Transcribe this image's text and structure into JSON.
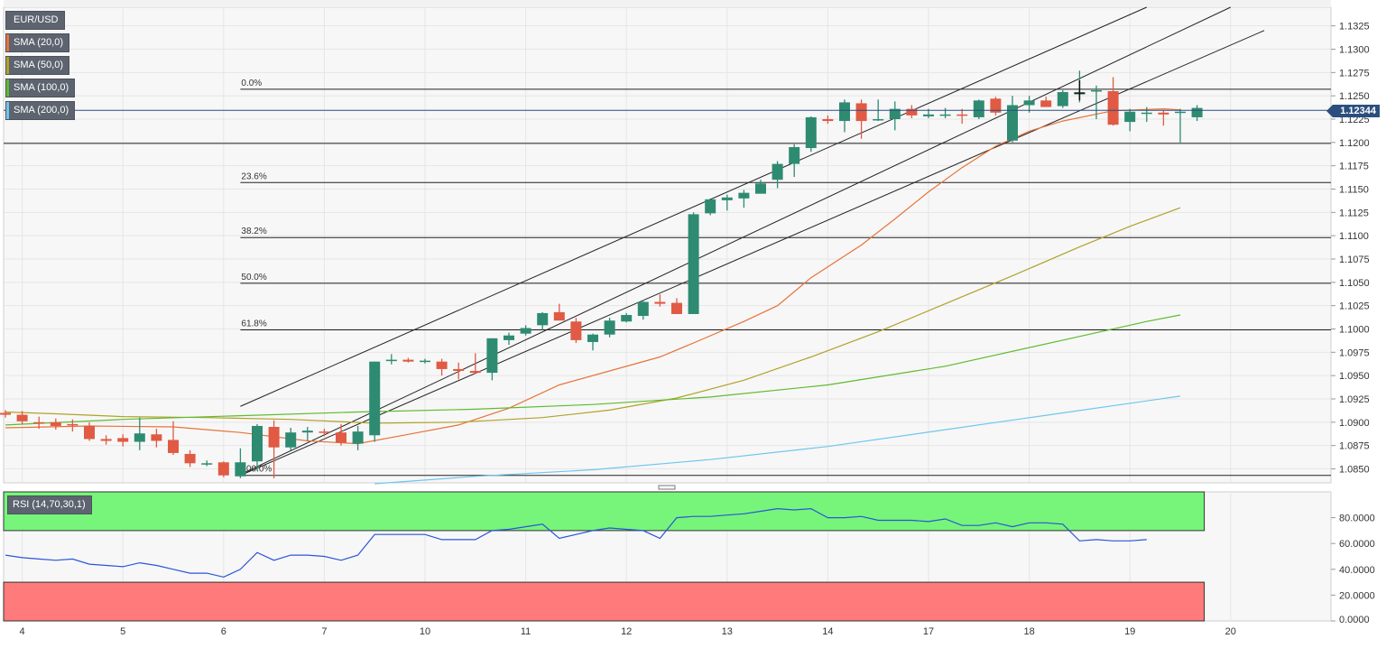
{
  "symbol": "EUR/USD",
  "indicators": [
    {
      "label": "SMA (20,0)",
      "color": "#e8733a"
    },
    {
      "label": "SMA (50,0)",
      "color": "#b0a228"
    },
    {
      "label": "SMA (100,0)",
      "color": "#5dbb2f"
    },
    {
      "label": "SMA (200,0)",
      "color": "#6fc6ef"
    }
  ],
  "last_price": "1.12344",
  "rsi_label": "RSI (14,70,30,1)",
  "colors": {
    "up": "#2e8b72",
    "down": "#e05a44",
    "grid": "#e6e6e6",
    "rsi_line": "#2a55d8",
    "overbought": "#76f57a",
    "oversold": "#ff7a7a"
  },
  "chart_data": {
    "type": "candlestick",
    "title": "EUR/USD",
    "timeframe_note": "",
    "ylim": [
      1.0835,
      1.1345
    ],
    "y_ticks": [
      "1.1325",
      "1.1300",
      "1.1275",
      "1.1250",
      "1.1225",
      "1.1200",
      "1.1175",
      "1.1150",
      "1.1125",
      "1.1100",
      "1.1075",
      "1.1050",
      "1.1025",
      "1.1000",
      "1.0975",
      "1.0950",
      "1.0925",
      "1.0900",
      "1.0875",
      "1.0850"
    ],
    "x_ticks": [
      {
        "label": "4",
        "bar": 1
      },
      {
        "label": "5",
        "bar": 7
      },
      {
        "label": "6",
        "bar": 13
      },
      {
        "label": "7",
        "bar": 19
      },
      {
        "label": "10",
        "bar": 25
      },
      {
        "label": "11",
        "bar": 31
      },
      {
        "label": "12",
        "bar": 37
      },
      {
        "label": "13",
        "bar": 43
      },
      {
        "label": "14",
        "bar": 49
      },
      {
        "label": "17",
        "bar": 55
      },
      {
        "label": "18",
        "bar": 61
      },
      {
        "label": "19",
        "bar": 67
      },
      {
        "label": "20",
        "bar": 73
      }
    ],
    "candles": [
      [
        1.091,
        1.0913,
        1.0905,
        1.0908
      ],
      [
        1.0908,
        1.0912,
        1.0898,
        1.0901
      ],
      [
        1.09,
        1.0906,
        1.0893,
        1.0899
      ],
      [
        1.09,
        1.0904,
        1.0892,
        1.0896
      ],
      [
        1.0898,
        1.0903,
        1.089,
        1.0897
      ],
      [
        1.0896,
        1.09,
        1.088,
        1.0882
      ],
      [
        1.0882,
        1.0886,
        1.0876,
        1.088
      ],
      [
        1.0883,
        1.0887,
        1.0874,
        1.0879
      ],
      [
        1.0879,
        1.0905,
        1.087,
        1.0888
      ],
      [
        1.0887,
        1.0893,
        1.0873,
        1.088
      ],
      [
        1.0881,
        1.0901,
        1.0865,
        1.0867
      ],
      [
        1.0866,
        1.087,
        1.0852,
        1.0856
      ],
      [
        1.0856,
        1.0859,
        1.0853,
        1.0856
      ],
      [
        1.0857,
        1.0858,
        1.0841,
        1.0843
      ],
      [
        1.0842,
        1.0872,
        1.084,
        1.0857
      ],
      [
        1.0858,
        1.0898,
        1.0848,
        1.0896
      ],
      [
        1.0895,
        1.0902,
        1.084,
        1.0873
      ],
      [
        1.0873,
        1.0894,
        1.087,
        1.0889
      ],
      [
        1.0889,
        1.0895,
        1.088,
        1.0891
      ],
      [
        1.089,
        1.0893,
        1.0885,
        1.0889
      ],
      [
        1.0889,
        1.0898,
        1.0875,
        1.0878
      ],
      [
        1.0877,
        1.0896,
        1.087,
        1.089
      ],
      [
        1.0886,
        1.0965,
        1.0879,
        1.0965
      ],
      [
        1.0967,
        1.0973,
        1.0962,
        1.0967
      ],
      [
        1.0967,
        1.0969,
        1.0964,
        1.0965
      ],
      [
        1.0965,
        1.0968,
        1.0963,
        1.0966
      ],
      [
        1.0965,
        1.0968,
        1.095,
        1.0957
      ],
      [
        1.0957,
        1.0964,
        1.0946,
        1.0955
      ],
      [
        1.0955,
        1.0974,
        1.0952,
        1.0953
      ],
      [
        1.0953,
        1.099,
        1.0945,
        1.099
      ],
      [
        1.0988,
        1.0996,
        1.0983,
        1.0993
      ],
      [
        1.0995,
        1.1004,
        1.0993,
        1.1001
      ],
      [
        1.1004,
        1.1018,
        1.0999,
        1.1017
      ],
      [
        1.1018,
        1.1027,
        1.1011,
        1.1009
      ],
      [
        1.1008,
        1.1012,
        1.0985,
        1.0988
      ],
      [
        1.0986,
        1.0995,
        1.0977,
        1.0994
      ],
      [
        1.0994,
        1.1012,
        1.0991,
        1.1009
      ],
      [
        1.1008,
        1.1017,
        1.1007,
        1.1015
      ],
      [
        1.1014,
        1.1031,
        1.101,
        1.1029
      ],
      [
        1.1029,
        1.1037,
        1.1024,
        1.1027
      ],
      [
        1.1028,
        1.1033,
        1.1016,
        1.1016
      ],
      [
        1.1016,
        1.1125,
        1.1016,
        1.1123
      ],
      [
        1.1124,
        1.114,
        1.1122,
        1.1139
      ],
      [
        1.1138,
        1.1144,
        1.1127,
        1.1141
      ],
      [
        1.114,
        1.1149,
        1.113,
        1.1146
      ],
      [
        1.1145,
        1.116,
        1.1148,
        1.1156
      ],
      [
        1.116,
        1.118,
        1.1151,
        1.1177
      ],
      [
        1.1177,
        1.1198,
        1.1163,
        1.1195
      ],
      [
        1.1194,
        1.1228,
        1.119,
        1.1227
      ],
      [
        1.1225,
        1.1229,
        1.122,
        1.1223
      ],
      [
        1.1223,
        1.1246,
        1.1211,
        1.1243
      ],
      [
        1.1242,
        1.1246,
        1.1204,
        1.1223
      ],
      [
        1.1224,
        1.1246,
        1.1223,
        1.1225
      ],
      [
        1.1225,
        1.1244,
        1.1213,
        1.1236
      ],
      [
        1.1236,
        1.124,
        1.1226,
        1.1229
      ],
      [
        1.1228,
        1.1236,
        1.1226,
        1.123
      ],
      [
        1.123,
        1.1237,
        1.1226,
        1.123
      ],
      [
        1.123,
        1.1236,
        1.122,
        1.1229
      ],
      [
        1.1227,
        1.1246,
        1.1225,
        1.1245
      ],
      [
        1.1247,
        1.1249,
        1.1229,
        1.1232
      ],
      [
        1.1202,
        1.125,
        1.12,
        1.124
      ],
      [
        1.124,
        1.125,
        1.1232,
        1.1245
      ],
      [
        1.1245,
        1.1249,
        1.1238,
        1.1238
      ],
      [
        1.1239,
        1.1256,
        1.1237,
        1.1254
      ],
      [
        1.1253,
        1.1277,
        1.1243,
        1.1253
      ],
      [
        1.1256,
        1.1261,
        1.1225,
        1.1256
      ],
      [
        1.1255,
        1.127,
        1.1218,
        1.1219
      ],
      [
        1.1222,
        1.1236,
        1.1212,
        1.1233
      ],
      [
        1.1232,
        1.1238,
        1.1222,
        1.1232
      ],
      [
        1.1232,
        1.1234,
        1.1218,
        1.123
      ],
      [
        1.1232,
        1.1236,
        1.12,
        1.1233
      ],
      [
        1.1227,
        1.124,
        1.1223,
        1.1237
      ]
    ],
    "sma": [
      {
        "name": "SMA (20,0)",
        "color": "#e8733a",
        "points": [
          [
            0,
            1.0894
          ],
          [
            5,
            1.0896
          ],
          [
            10,
            1.0895
          ],
          [
            14,
            1.0889
          ],
          [
            18,
            1.088
          ],
          [
            21,
            1.0877
          ],
          [
            24,
            1.0887
          ],
          [
            27,
            1.0897
          ],
          [
            30,
            1.0915
          ],
          [
            33,
            1.094
          ],
          [
            36,
            1.0955
          ],
          [
            39,
            1.097
          ],
          [
            41,
            1.0985
          ],
          [
            44,
            1.1008
          ],
          [
            46,
            1.1025
          ],
          [
            48,
            1.1055
          ],
          [
            51,
            1.109
          ],
          [
            53,
            1.1118
          ],
          [
            55,
            1.1147
          ],
          [
            57,
            1.1173
          ],
          [
            59,
            1.1196
          ],
          [
            61,
            1.1212
          ],
          [
            63,
            1.1223
          ],
          [
            66,
            1.1234
          ],
          [
            69,
            1.1236
          ],
          [
            70,
            1.1235
          ]
        ]
      },
      {
        "name": "SMA (50,0)",
        "color": "#b0a228",
        "points": [
          [
            0,
            1.0911
          ],
          [
            3,
            1.0909
          ],
          [
            7,
            1.0906
          ],
          [
            12,
            1.0905
          ],
          [
            17,
            1.0903
          ],
          [
            22,
            1.0899
          ],
          [
            27,
            1.09
          ],
          [
            32,
            1.0905
          ],
          [
            36,
            1.0913
          ],
          [
            40,
            1.0926
          ],
          [
            44,
            1.0945
          ],
          [
            48,
            1.097
          ],
          [
            52,
            1.0997
          ],
          [
            56,
            1.1027
          ],
          [
            60,
            1.1057
          ],
          [
            64,
            1.1088
          ],
          [
            67,
            1.111
          ],
          [
            70,
            1.113
          ]
        ]
      },
      {
        "name": "SMA (100,0)",
        "color": "#5dbb2f",
        "points": [
          [
            0,
            1.0897
          ],
          [
            7,
            1.0903
          ],
          [
            14,
            1.0907
          ],
          [
            21,
            1.0911
          ],
          [
            28,
            1.0914
          ],
          [
            35,
            1.0919
          ],
          [
            42,
            1.0927
          ],
          [
            49,
            1.094
          ],
          [
            56,
            1.096
          ],
          [
            63,
            1.0988
          ],
          [
            68,
            1.1008
          ],
          [
            70,
            1.1015
          ]
        ]
      },
      {
        "name": "SMA (200,0)",
        "color": "#6fc6ef",
        "points": [
          [
            22,
            1.0834
          ],
          [
            28,
            1.0842
          ],
          [
            35,
            1.0849
          ],
          [
            42,
            1.086
          ],
          [
            49,
            1.0874
          ],
          [
            56,
            1.0892
          ],
          [
            63,
            1.091
          ],
          [
            70,
            1.0928
          ]
        ]
      }
    ],
    "fibonacci": [
      {
        "label": "0.0%",
        "value": 1.1257
      },
      {
        "label": "23.6%",
        "value": 1.1157
      },
      {
        "label": "38.2%",
        "value": 1.1098
      },
      {
        "label": "50.0%",
        "value": 1.1049
      },
      {
        "label": "61.8%",
        "value": 1.0999
      },
      {
        "label": "100.0%",
        "value": 1.0843
      }
    ],
    "support_line": 1.1199,
    "price_line": 1.12344,
    "channel": [
      {
        "from": [
          14,
          1.0917
        ],
        "to": [
          68,
          1.1345
        ]
      },
      {
        "from": [
          14,
          1.0844
        ],
        "to": [
          73,
          1.1345
        ]
      },
      {
        "from": [
          14,
          1.0843
        ],
        "to": [
          75,
          1.132
        ]
      }
    ],
    "rsi": {
      "label": "RSI (14,70,30,1)",
      "ylim": [
        0,
        100
      ],
      "y_ticks": [
        "80.0000",
        "60.0000",
        "40.0000",
        "20.0000",
        "0.0000"
      ],
      "overbought": 70,
      "oversold": 30,
      "values": [
        51,
        49,
        48,
        47,
        48,
        44,
        43,
        42,
        45,
        43,
        40,
        37,
        37,
        34,
        40,
        53,
        47,
        51,
        51,
        50,
        47,
        51,
        67,
        67,
        67,
        67,
        63,
        63,
        63,
        70,
        71,
        73,
        75,
        64,
        67,
        70,
        72,
        71,
        70,
        64,
        80,
        81,
        81,
        82,
        83,
        85,
        87,
        86,
        87,
        80,
        80,
        81,
        78,
        78,
        78,
        77,
        79,
        74,
        74,
        76,
        73,
        76,
        76,
        75,
        62,
        63,
        62,
        62,
        63
      ]
    }
  }
}
